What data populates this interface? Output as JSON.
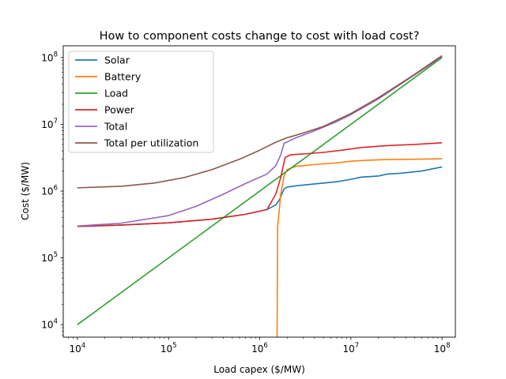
{
  "chart_data": {
    "type": "line",
    "title": "How to component costs change to cost with load cost?",
    "xlabel": "Load capex ($/MW)",
    "ylabel": "Cost ($/MW)",
    "xscale": "log",
    "yscale": "log",
    "xlim": [
      7000,
      140000000
    ],
    "ylim": [
      6500,
      150000000
    ],
    "x_ticks": [
      {
        "value": 10000,
        "base": "10",
        "exp": "4"
      },
      {
        "value": 100000,
        "base": "10",
        "exp": "5"
      },
      {
        "value": 1000000,
        "base": "10",
        "exp": "6"
      },
      {
        "value": 10000000,
        "base": "10",
        "exp": "7"
      },
      {
        "value": 100000000,
        "base": "10",
        "exp": "8"
      }
    ],
    "y_ticks": [
      {
        "value": 10000,
        "base": "10",
        "exp": "4"
      },
      {
        "value": 100000,
        "base": "10",
        "exp": "5"
      },
      {
        "value": 1000000,
        "base": "10",
        "exp": "6"
      },
      {
        "value": 10000000,
        "base": "10",
        "exp": "7"
      },
      {
        "value": 100000000,
        "base": "10",
        "exp": "8"
      }
    ],
    "grid": false,
    "legend_position": "top-left",
    "series": [
      {
        "name": "Solar",
        "color": "#1f77b4",
        "points": [
          [
            10000,
            295000
          ],
          [
            30000,
            310000
          ],
          [
            100000,
            335000
          ],
          [
            300000,
            380000
          ],
          [
            700000,
            450000
          ],
          [
            1200000,
            530000
          ],
          [
            1500000,
            620000
          ],
          [
            1650000,
            750000
          ],
          [
            1850000,
            1080000
          ],
          [
            2000000,
            1150000
          ],
          [
            2500000,
            1200000
          ],
          [
            4000000,
            1280000
          ],
          [
            7000000,
            1380000
          ],
          [
            10000000,
            1500000
          ],
          [
            13000000,
            1620000
          ],
          [
            20000000,
            1680000
          ],
          [
            25000000,
            1800000
          ],
          [
            35000000,
            1850000
          ],
          [
            60000000,
            2000000
          ],
          [
            100000000,
            2300000
          ]
        ]
      },
      {
        "name": "Battery",
        "color": "#ff7f0e",
        "points": [
          [
            1550000,
            6500
          ],
          [
            1570000,
            280000
          ],
          [
            1700000,
            900000
          ],
          [
            1850000,
            1700000
          ],
          [
            2000000,
            2100000
          ],
          [
            2500000,
            2350000
          ],
          [
            4000000,
            2500000
          ],
          [
            7000000,
            2650000
          ],
          [
            10000000,
            2800000
          ],
          [
            15000000,
            2900000
          ],
          [
            25000000,
            2970000
          ],
          [
            50000000,
            3000000
          ],
          [
            100000000,
            3050000
          ]
        ]
      },
      {
        "name": "Load",
        "color": "#2ca02c",
        "points": [
          [
            10000,
            10000
          ],
          [
            100000000,
            100000000
          ]
        ]
      },
      {
        "name": "Power",
        "color": "#d62728",
        "points": [
          [
            10000,
            295000
          ],
          [
            30000,
            310000
          ],
          [
            100000,
            335000
          ],
          [
            300000,
            380000
          ],
          [
            700000,
            450000
          ],
          [
            1200000,
            530000
          ],
          [
            1500000,
            900000
          ],
          [
            1700000,
            1600000
          ],
          [
            1900000,
            3200000
          ],
          [
            2200000,
            3500000
          ],
          [
            3000000,
            3600000
          ],
          [
            5000000,
            3800000
          ],
          [
            8000000,
            4100000
          ],
          [
            13000000,
            4500000
          ],
          [
            25000000,
            4800000
          ],
          [
            50000000,
            5000000
          ],
          [
            100000000,
            5300000
          ]
        ]
      },
      {
        "name": "Total",
        "color": "#9467bd",
        "points": [
          [
            10000,
            300000
          ],
          [
            30000,
            330000
          ],
          [
            100000,
            430000
          ],
          [
            200000,
            590000
          ],
          [
            400000,
            900000
          ],
          [
            700000,
            1300000
          ],
          [
            1200000,
            1800000
          ],
          [
            1500000,
            2400000
          ],
          [
            1700000,
            3500000
          ],
          [
            1850000,
            5200000
          ],
          [
            2500000,
            6300000
          ],
          [
            4000000,
            8000000
          ],
          [
            7000000,
            11000000
          ],
          [
            10000000,
            14000000
          ],
          [
            20000000,
            24000000
          ],
          [
            50000000,
            55000000
          ],
          [
            100000000,
            103000000
          ]
        ]
      },
      {
        "name": "Total per utilization",
        "color": "#8c564b",
        "points": [
          [
            10000,
            1120000
          ],
          [
            30000,
            1180000
          ],
          [
            70000,
            1320000
          ],
          [
            150000,
            1600000
          ],
          [
            300000,
            2100000
          ],
          [
            600000,
            3000000
          ],
          [
            1000000,
            4100000
          ],
          [
            1500000,
            5400000
          ],
          [
            2000000,
            6300000
          ],
          [
            3000000,
            7400000
          ],
          [
            5000000,
            9300000
          ],
          [
            10000000,
            14500000
          ],
          [
            20000000,
            25000000
          ],
          [
            50000000,
            56000000
          ],
          [
            100000000,
            107000000
          ]
        ]
      }
    ]
  }
}
